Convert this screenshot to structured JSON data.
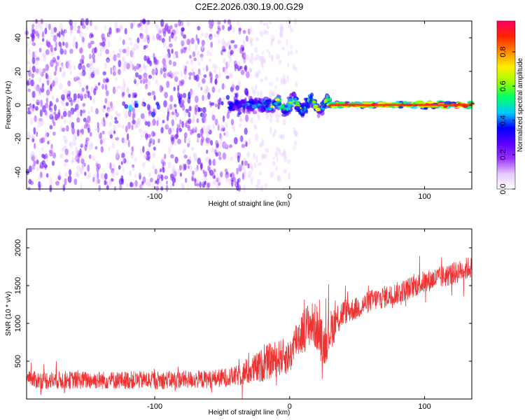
{
  "title": "C2E2.2026.030.19.00.G29",
  "chart_data": [
    {
      "type": "heatmap",
      "name": "spectrogram",
      "xlabel": "Height of straight line (km)",
      "ylabel": "Frequency (Hz)",
      "xlim": [
        -195,
        135
      ],
      "ylim": [
        -50,
        50
      ],
      "xticks": [
        -100,
        0,
        100
      ],
      "xtick_labels": [
        "-100",
        "0",
        "100"
      ],
      "yticks": [
        -40,
        -20,
        0,
        20,
        40
      ],
      "ytick_labels": [
        "-40",
        "-20",
        "0",
        "20",
        "40"
      ],
      "colorbar": {
        "label": "Normalized spectral amplitude",
        "range": [
          0,
          0.98
        ],
        "ticks": [
          0,
          0.2,
          0.4,
          0.6,
          0.8
        ],
        "tick_labels": [
          "0.0",
          "0.2",
          "0.4",
          "0.6",
          "0.8"
        ],
        "colors": [
          "#ffffff",
          "#e6c8ff",
          "#9933ff",
          "#5a00ff",
          "#0000ff",
          "#00ccff",
          "#00ff66",
          "#99ff00",
          "#ffee00",
          "#ff8800",
          "#ff2200",
          "#ff0066"
        ]
      },
      "regions": [
        {
          "description": "broadband noise",
          "x": [
            -195,
            -30
          ],
          "freq_spread": 50,
          "amplitude": 0.15
        },
        {
          "description": "sparse noise",
          "x": [
            -30,
            5
          ],
          "freq_spread": 50,
          "amplitude": 0.05
        },
        {
          "description": "emerging signal",
          "x": [
            -45,
            30
          ],
          "freq_spread": 8,
          "amplitude": 0.4
        },
        {
          "description": "strong narrowband signal",
          "x": [
            30,
            135
          ],
          "freq_spread": 2,
          "amplitude": 0.95
        }
      ]
    },
    {
      "type": "line",
      "name": "snr",
      "xlabel": "Height of straight line (km)",
      "ylabel": "SNR (10 * v/v)",
      "xlim": [
        -195,
        135
      ],
      "ylim": [
        0,
        2250
      ],
      "xticks": [
        -100,
        0,
        100
      ],
      "xtick_labels": [
        "-100",
        "0",
        "100"
      ],
      "yticks": [
        500,
        1000,
        1500,
        2000
      ],
      "ytick_labels": [
        "500",
        "1000",
        "1500",
        "2000"
      ],
      "color": "#ee3333",
      "series": [
        {
          "name": "SNR trend",
          "x": [
            -195,
            -150,
            -100,
            -60,
            -40,
            -25,
            -15,
            -5,
            0,
            5,
            10,
            15,
            20,
            25,
            30,
            35,
            40,
            50,
            60,
            80,
            100,
            120,
            135
          ],
          "y": [
            250,
            250,
            250,
            260,
            300,
            400,
            500,
            560,
            550,
            800,
            900,
            1000,
            950,
            700,
            900,
            1050,
            1150,
            1200,
            1300,
            1400,
            1550,
            1650,
            1750
          ],
          "spread": [
            200,
            200,
            200,
            200,
            220,
            350,
            400,
            400,
            380,
            450,
            500,
            500,
            520,
            500,
            450,
            400,
            300,
            250,
            250,
            250,
            250,
            250,
            250
          ]
        }
      ]
    }
  ]
}
